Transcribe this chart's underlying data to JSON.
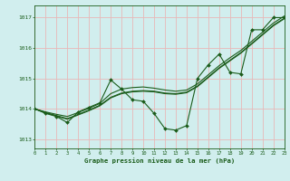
{
  "title": "Graphe pression niveau de la mer (hPa)",
  "background_color": "#d1eeee",
  "grid_color": "#e8b8b8",
  "line_color": "#1a5c1a",
  "xlim": [
    0,
    23
  ],
  "ylim": [
    1012.7,
    1017.4
  ],
  "yticks": [
    1013,
    1014,
    1015,
    1016,
    1017
  ],
  "xticks": [
    0,
    1,
    2,
    3,
    4,
    5,
    6,
    7,
    8,
    9,
    10,
    11,
    12,
    13,
    14,
    15,
    16,
    17,
    18,
    19,
    20,
    21,
    22,
    23
  ],
  "hours": [
    0,
    1,
    2,
    3,
    4,
    5,
    6,
    7,
    8,
    9,
    10,
    11,
    12,
    13,
    14,
    15,
    16,
    17,
    18,
    19,
    20,
    21,
    22,
    23
  ],
  "main_line": [
    1014.0,
    1013.85,
    1013.75,
    1013.55,
    1013.9,
    1014.05,
    1014.2,
    1014.95,
    1014.65,
    1014.3,
    1014.25,
    1013.85,
    1013.35,
    1013.3,
    1013.45,
    1015.0,
    1015.45,
    1015.8,
    1015.2,
    1015.15,
    1016.6,
    1016.6,
    1017.0,
    1017.0
  ],
  "smooth1": [
    1014.0,
    1013.88,
    1013.78,
    1013.68,
    1013.82,
    1013.96,
    1014.12,
    1014.38,
    1014.52,
    1014.58,
    1014.6,
    1014.58,
    1014.52,
    1014.5,
    1014.55,
    1014.75,
    1015.05,
    1015.35,
    1015.6,
    1015.85,
    1016.15,
    1016.45,
    1016.75,
    1016.98
  ],
  "smooth2": [
    1014.0,
    1013.9,
    1013.82,
    1013.75,
    1013.88,
    1014.02,
    1014.18,
    1014.5,
    1014.65,
    1014.7,
    1014.72,
    1014.68,
    1014.62,
    1014.58,
    1014.62,
    1014.82,
    1015.12,
    1015.42,
    1015.68,
    1015.92,
    1016.22,
    1016.52,
    1016.82,
    1017.05
  ],
  "smooth3": [
    1014.0,
    1013.87,
    1013.76,
    1013.66,
    1013.8,
    1013.94,
    1014.1,
    1014.36,
    1014.5,
    1014.56,
    1014.58,
    1014.56,
    1014.5,
    1014.48,
    1014.53,
    1014.73,
    1015.03,
    1015.33,
    1015.58,
    1015.83,
    1016.13,
    1016.43,
    1016.73,
    1016.96
  ]
}
